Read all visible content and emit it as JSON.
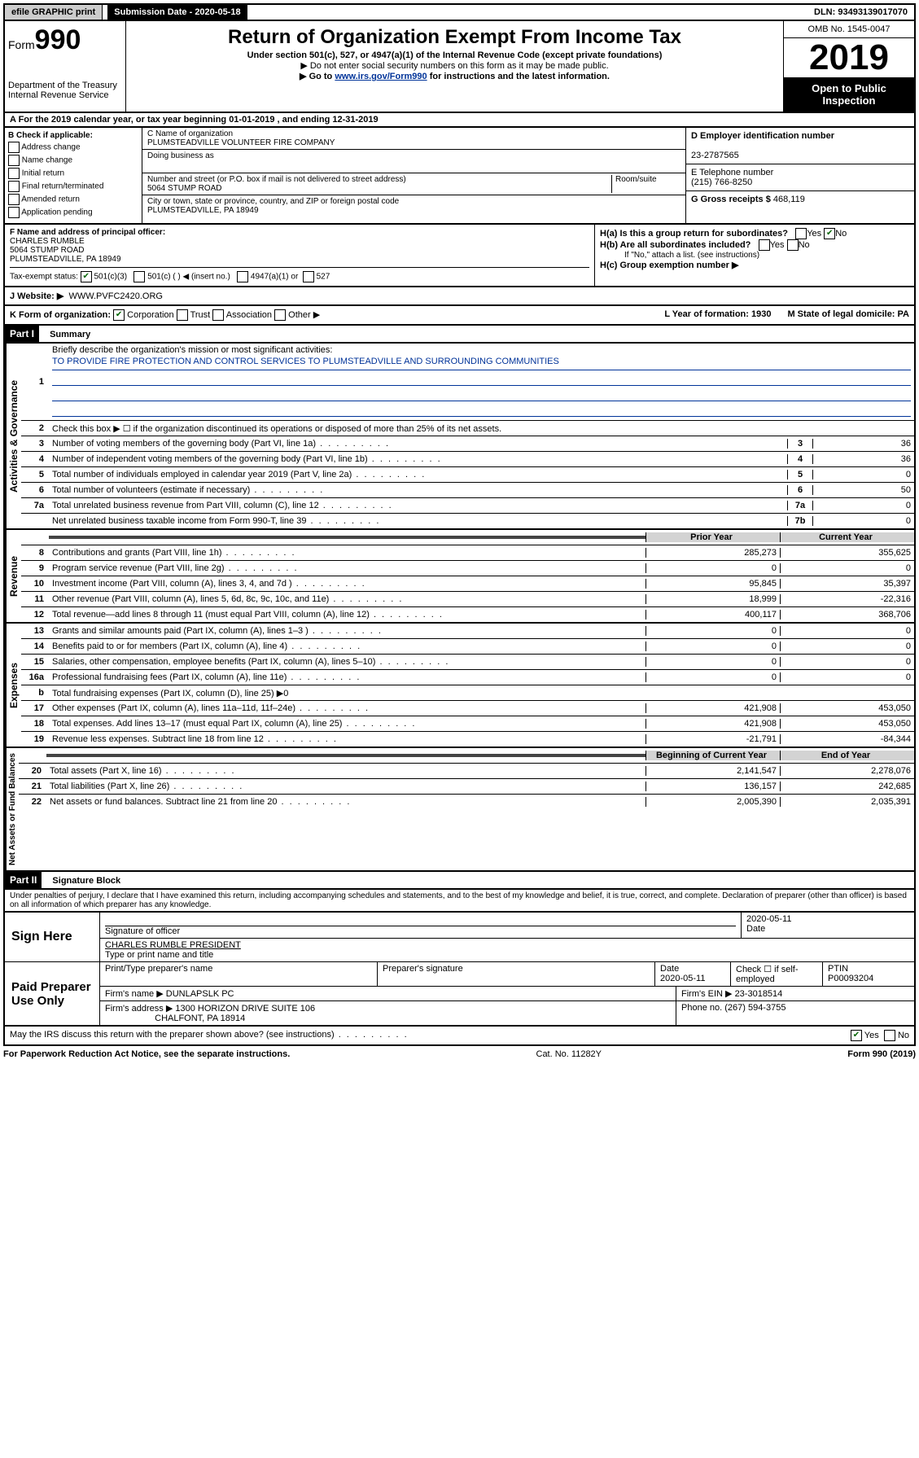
{
  "topbar": {
    "efile": "efile GRAPHIC print",
    "submission_label": "Submission Date - 2020-05-18",
    "dln": "DLN: 93493139017070"
  },
  "header": {
    "form_label": "Form",
    "form_no": "990",
    "dept1": "Department of the Treasury",
    "dept2": "Internal Revenue Service",
    "title": "Return of Organization Exempt From Income Tax",
    "sub": "Under section 501(c), 527, or 4947(a)(1) of the Internal Revenue Code (except private foundations)",
    "note1": "▶ Do not enter social security numbers on this form as it may be made public.",
    "note2a": "▶ Go to ",
    "note2_link": "www.irs.gov/Form990",
    "note2b": " for instructions and the latest information.",
    "omb": "OMB No. 1545-0047",
    "year": "2019",
    "open": "Open to Public Inspection"
  },
  "rowA": "A For the 2019 calendar year, or tax year beginning 01-01-2019    , and ending 12-31-2019",
  "boxB": {
    "label": "B Check if applicable:",
    "opts": [
      "Address change",
      "Name change",
      "Initial return",
      "Final return/terminated",
      "Amended return",
      "Application pending"
    ]
  },
  "boxC": {
    "label": "C Name of organization",
    "name": "PLUMSTEADVILLE VOLUNTEER FIRE COMPANY",
    "dba_label": "Doing business as",
    "addr_label": "Number and street (or P.O. box if mail is not delivered to street address)",
    "room_label": "Room/suite",
    "addr": "5064 STUMP ROAD",
    "city_label": "City or town, state or province, country, and ZIP or foreign postal code",
    "city": "PLUMSTEADVILLE, PA  18949"
  },
  "boxD": {
    "label": "D Employer identification number",
    "val": "23-2787565"
  },
  "boxE": {
    "label": "E Telephone number",
    "val": "(215) 766-8250"
  },
  "boxG": {
    "label": "G Gross receipts $",
    "val": "468,119"
  },
  "boxF": {
    "label": "F Name and address of principal officer:",
    "name": "CHARLES RUMBLE",
    "addr1": "5064 STUMP ROAD",
    "addr2": "PLUMSTEADVILLE, PA  18949"
  },
  "boxH": {
    "ha": "H(a)  Is this a group return for subordinates?",
    "hb": "H(b)  Are all subordinates included?",
    "hb_note": "If \"No,\" attach a list. (see instructions)",
    "hc": "H(c)  Group exemption number ▶",
    "yes": "Yes",
    "no": "No"
  },
  "boxI": {
    "label": "Tax-exempt status:",
    "o1": "501(c)(3)",
    "o2": "501(c) (  ) ◀ (insert no.)",
    "o3": "4947(a)(1) or",
    "o4": "527"
  },
  "rowJ": {
    "label": "J   Website: ▶",
    "val": "WWW.PVFC2420.ORG"
  },
  "rowK": {
    "label": "K Form of organization:",
    "o1": "Corporation",
    "o2": "Trust",
    "o3": "Association",
    "o4": "Other ▶",
    "L": "L Year of formation: 1930",
    "M": "M State of legal domicile: PA"
  },
  "part1": {
    "hdr": "Part I",
    "title": "Summary",
    "vlabels": [
      "Activities & Governance",
      "Revenue",
      "Expenses",
      "Net Assets or Fund Balances"
    ],
    "l1": "Briefly describe the organization's mission or most significant activities:",
    "mission": "TO PROVIDE FIRE PROTECTION AND CONTROL SERVICES TO PLUMSTEADVILLE AND SURROUNDING COMMUNITIES",
    "l2": "Check this box ▶ ☐  if the organization discontinued its operations or disposed of more than 25% of its net assets.",
    "lines_gov": [
      {
        "n": "3",
        "d": "Number of voting members of the governing body (Part VI, line 1a)",
        "box": "3",
        "v": "36"
      },
      {
        "n": "4",
        "d": "Number of independent voting members of the governing body (Part VI, line 1b)",
        "box": "4",
        "v": "36"
      },
      {
        "n": "5",
        "d": "Total number of individuals employed in calendar year 2019 (Part V, line 2a)",
        "box": "5",
        "v": "0"
      },
      {
        "n": "6",
        "d": "Total number of volunteers (estimate if necessary)",
        "box": "6",
        "v": "50"
      },
      {
        "n": "7a",
        "d": "Total unrelated business revenue from Part VIII, column (C), line 12",
        "box": "7a",
        "v": "0"
      },
      {
        "n": "",
        "d": "Net unrelated business taxable income from Form 990-T, line 39",
        "box": "7b",
        "v": "0"
      }
    ],
    "hdr_prior": "Prior Year",
    "hdr_curr": "Current Year",
    "lines_rev": [
      {
        "n": "8",
        "d": "Contributions and grants (Part VIII, line 1h)",
        "p": "285,273",
        "c": "355,625"
      },
      {
        "n": "9",
        "d": "Program service revenue (Part VIII, line 2g)",
        "p": "0",
        "c": "0"
      },
      {
        "n": "10",
        "d": "Investment income (Part VIII, column (A), lines 3, 4, and 7d )",
        "p": "95,845",
        "c": "35,397"
      },
      {
        "n": "11",
        "d": "Other revenue (Part VIII, column (A), lines 5, 6d, 8c, 9c, 10c, and 11e)",
        "p": "18,999",
        "c": "-22,316"
      },
      {
        "n": "12",
        "d": "Total revenue—add lines 8 through 11 (must equal Part VIII, column (A), line 12)",
        "p": "400,117",
        "c": "368,706"
      }
    ],
    "lines_exp": [
      {
        "n": "13",
        "d": "Grants and similar amounts paid (Part IX, column (A), lines 1–3 )",
        "p": "0",
        "c": "0"
      },
      {
        "n": "14",
        "d": "Benefits paid to or for members (Part IX, column (A), line 4)",
        "p": "0",
        "c": "0"
      },
      {
        "n": "15",
        "d": "Salaries, other compensation, employee benefits (Part IX, column (A), lines 5–10)",
        "p": "0",
        "c": "0"
      },
      {
        "n": "16a",
        "d": "Professional fundraising fees (Part IX, column (A), line 11e)",
        "p": "0",
        "c": "0"
      },
      {
        "n": "b",
        "d": "Total fundraising expenses (Part IX, column (D), line 25) ▶0",
        "p": "",
        "c": "",
        "shaded": true
      },
      {
        "n": "17",
        "d": "Other expenses (Part IX, column (A), lines 11a–11d, 11f–24e)",
        "p": "421,908",
        "c": "453,050"
      },
      {
        "n": "18",
        "d": "Total expenses. Add lines 13–17 (must equal Part IX, column (A), line 25)",
        "p": "421,908",
        "c": "453,050"
      },
      {
        "n": "19",
        "d": "Revenue less expenses. Subtract line 18 from line 12",
        "p": "-21,791",
        "c": "-84,344"
      }
    ],
    "hdr_beg": "Beginning of Current Year",
    "hdr_end": "End of Year",
    "lines_net": [
      {
        "n": "20",
        "d": "Total assets (Part X, line 16)",
        "p": "2,141,547",
        "c": "2,278,076"
      },
      {
        "n": "21",
        "d": "Total liabilities (Part X, line 26)",
        "p": "136,157",
        "c": "242,685"
      },
      {
        "n": "22",
        "d": "Net assets or fund balances. Subtract line 21 from line 20",
        "p": "2,005,390",
        "c": "2,035,391"
      }
    ]
  },
  "part2": {
    "hdr": "Part II",
    "title": "Signature Block",
    "penalty": "Under penalties of perjury, I declare that I have examined this return, including accompanying schedules and statements, and to the best of my knowledge and belief, it is true, correct, and complete. Declaration of preparer (other than officer) is based on all information of which preparer has any knowledge.",
    "sign_here": "Sign Here",
    "sig_officer": "Signature of officer",
    "sig_date": "2020-05-11",
    "date_label": "Date",
    "officer_name": "CHARLES RUMBLE  PRESIDENT",
    "type_name": "Type or print name and title",
    "paid": "Paid Preparer Use Only",
    "pp_name_label": "Print/Type preparer's name",
    "pp_sig_label": "Preparer's signature",
    "pp_date_label": "Date",
    "pp_date": "2020-05-11",
    "pp_check": "Check ☐ if self-employed",
    "ptin_label": "PTIN",
    "ptin": "P00093204",
    "firm_name_label": "Firm's name    ▶",
    "firm_name": "DUNLAPSLK PC",
    "firm_ein_label": "Firm's EIN ▶",
    "firm_ein": "23-3018514",
    "firm_addr_label": "Firm's address ▶",
    "firm_addr": "1300 HORIZON DRIVE SUITE 106",
    "firm_city": "CHALFONT, PA  18914",
    "phone_label": "Phone no.",
    "phone": "(267) 594-3755",
    "discuss": "May the IRS discuss this return with the preparer shown above? (see instructions)",
    "yes": "Yes",
    "no": "No"
  },
  "footer": {
    "left": "For Paperwork Reduction Act Notice, see the separate instructions.",
    "mid": "Cat. No. 11282Y",
    "right": "Form 990 (2019)"
  }
}
